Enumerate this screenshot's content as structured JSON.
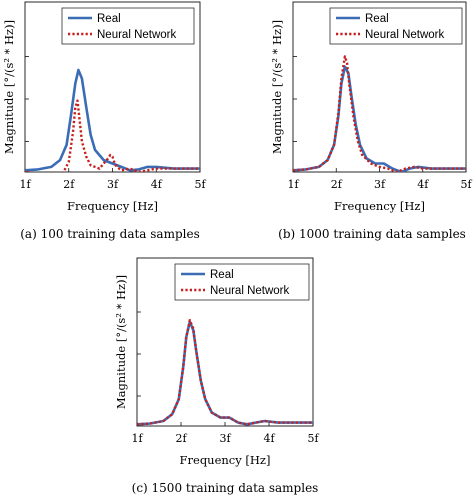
{
  "chart_data": [
    {
      "type": "line",
      "caption": "(a) 100 training data samples",
      "xlabel": "Frequency [Hz]",
      "ylabel": "Magnitude [°/(s² * Hz)]",
      "x_ticks": [
        "1f",
        "2f",
        "3f",
        "4f",
        "5f"
      ],
      "xlim": [
        1,
        5
      ],
      "ylim": [
        0,
        1
      ],
      "legend": "top-right",
      "series": [
        {
          "name": "Real",
          "color": "#3a6db5",
          "style": "solid",
          "x": [
            1.0,
            1.3,
            1.6,
            1.8,
            1.95,
            2.05,
            2.15,
            2.22,
            2.3,
            2.4,
            2.5,
            2.6,
            2.8,
            3.0,
            3.2,
            3.4,
            3.6,
            3.8,
            4.0,
            4.4,
            4.8,
            5.0
          ],
          "y": [
            0.01,
            0.015,
            0.03,
            0.07,
            0.16,
            0.33,
            0.52,
            0.6,
            0.55,
            0.38,
            0.22,
            0.13,
            0.07,
            0.05,
            0.03,
            0.01,
            0.015,
            0.03,
            0.03,
            0.02,
            0.02,
            0.02
          ]
        },
        {
          "name": "Neural Network",
          "color": "#c81e1e",
          "style": "dotted",
          "x": [
            1.0,
            1.3,
            1.5,
            1.7,
            1.8,
            1.9,
            2.0,
            2.1,
            2.15,
            2.2,
            2.25,
            2.3,
            2.4,
            2.5,
            2.6,
            2.7,
            2.8,
            2.9,
            2.95,
            3.0,
            3.05,
            3.1,
            3.2,
            3.4,
            3.6,
            3.8,
            4.0,
            4.4,
            4.8,
            5.0
          ],
          "y": [
            0.0,
            -0.01,
            -0.03,
            -0.04,
            -0.02,
            0.01,
            0.06,
            0.24,
            0.38,
            0.42,
            0.3,
            0.18,
            0.09,
            0.04,
            0.03,
            0.02,
            0.05,
            0.08,
            0.1,
            0.09,
            0.05,
            0.03,
            0.01,
            0.02,
            0.0,
            0.01,
            0.02,
            0.02,
            0.02,
            0.02
          ]
        }
      ]
    },
    {
      "type": "line",
      "caption": "(b) 1000 training data samples",
      "xlabel": "Frequency [Hz]",
      "ylabel": "Magnitude [°/(s² * Hz)]",
      "x_ticks": [
        "1f",
        "2f",
        "3f",
        "4f",
        "5f"
      ],
      "xlim": [
        1,
        5
      ],
      "ylim": [
        0,
        1
      ],
      "legend": "top-right",
      "series": [
        {
          "name": "Real",
          "color": "#3a6db5",
          "style": "solid",
          "x": [
            1.0,
            1.3,
            1.6,
            1.8,
            1.95,
            2.05,
            2.12,
            2.2,
            2.28,
            2.35,
            2.45,
            2.55,
            2.7,
            2.9,
            3.1,
            3.3,
            3.5,
            3.7,
            3.9,
            4.2,
            4.6,
            5.0
          ],
          "y": [
            0.01,
            0.015,
            0.03,
            0.07,
            0.16,
            0.33,
            0.52,
            0.62,
            0.58,
            0.45,
            0.28,
            0.16,
            0.08,
            0.05,
            0.05,
            0.02,
            0.0,
            0.02,
            0.03,
            0.02,
            0.02,
            0.02
          ]
        },
        {
          "name": "Neural Network",
          "color": "#c81e1e",
          "style": "dotted",
          "x": [
            1.0,
            1.3,
            1.6,
            1.8,
            1.95,
            2.05,
            2.12,
            2.2,
            2.25,
            2.3,
            2.4,
            2.5,
            2.6,
            2.8,
            3.0,
            3.2,
            3.4,
            3.6,
            3.8,
            4.0,
            4.4,
            4.8,
            5.0
          ],
          "y": [
            0.01,
            0.015,
            0.03,
            0.07,
            0.16,
            0.35,
            0.55,
            0.68,
            0.64,
            0.52,
            0.32,
            0.18,
            0.1,
            0.05,
            0.03,
            0.02,
            0.0,
            0.02,
            0.03,
            0.02,
            0.02,
            0.02,
            0.02
          ]
        }
      ]
    },
    {
      "type": "line",
      "caption": "(c) 1500 training data samples",
      "xlabel": "Frequency [Hz]",
      "ylabel": "Magnitude [°/(s² * Hz)]",
      "x_ticks": [
        "1f",
        "2f",
        "3f",
        "4f",
        "5f"
      ],
      "xlim": [
        1,
        5
      ],
      "ylim": [
        0,
        1
      ],
      "legend": "top-right",
      "series": [
        {
          "name": "Real",
          "color": "#3a6db5",
          "style": "solid",
          "x": [
            1.0,
            1.3,
            1.6,
            1.8,
            1.95,
            2.05,
            2.12,
            2.2,
            2.28,
            2.35,
            2.45,
            2.55,
            2.7,
            2.9,
            3.1,
            3.3,
            3.5,
            3.7,
            3.9,
            4.2,
            4.6,
            5.0
          ],
          "y": [
            0.01,
            0.015,
            0.03,
            0.07,
            0.16,
            0.35,
            0.53,
            0.62,
            0.57,
            0.44,
            0.27,
            0.16,
            0.08,
            0.05,
            0.05,
            0.02,
            0.01,
            0.02,
            0.03,
            0.02,
            0.02,
            0.02
          ]
        },
        {
          "name": "Neural Network",
          "color": "#c81e1e",
          "style": "dotted",
          "x": [
            1.0,
            1.3,
            1.6,
            1.8,
            1.95,
            2.05,
            2.12,
            2.2,
            2.28,
            2.35,
            2.45,
            2.55,
            2.7,
            2.9,
            3.1,
            3.3,
            3.5,
            3.7,
            3.9,
            4.2,
            4.6,
            5.0
          ],
          "y": [
            0.01,
            0.015,
            0.03,
            0.07,
            0.16,
            0.35,
            0.53,
            0.63,
            0.58,
            0.44,
            0.27,
            0.16,
            0.08,
            0.05,
            0.05,
            0.02,
            0.01,
            0.02,
            0.03,
            0.02,
            0.02,
            0.02
          ]
        }
      ]
    }
  ]
}
